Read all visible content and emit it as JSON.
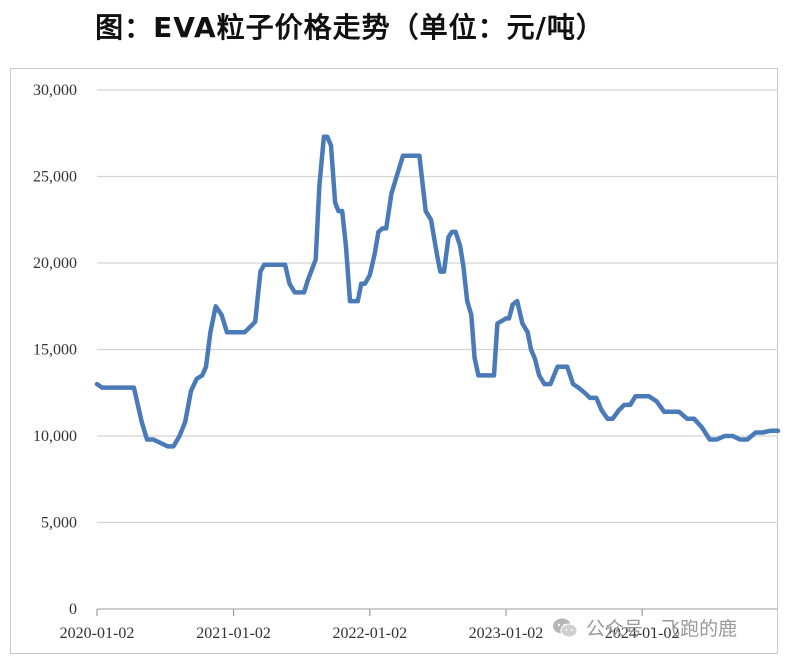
{
  "title": "图：EVA粒子价格走势（单位：元/吨）",
  "watermark": {
    "text": "公众号 · 飞跑的鹿",
    "icon": "wechat-icon"
  },
  "chart_data": {
    "type": "line",
    "title": "",
    "xlabel": "",
    "ylabel": "",
    "x_range": [
      "2020-01-02",
      "2024-12-31"
    ],
    "ylim": [
      0,
      30000
    ],
    "y_ticks": [
      0,
      5000,
      10000,
      15000,
      20000,
      25000,
      30000
    ],
    "y_tick_labels": [
      "0",
      "5,000",
      "10,000",
      "15,000",
      "20,000",
      "25,000",
      "30,000"
    ],
    "x_ticks": [
      "2020-01-02",
      "2021-01-02",
      "2022-01-02",
      "2023-01-02",
      "2024-01-02"
    ],
    "grid": "horizontal",
    "legend": "none",
    "color": "#4a7ab8",
    "series": [
      {
        "x": [
          "2020-01-02",
          "2020-01-15",
          "2020-03-01",
          "2020-04-10",
          "2020-05-01",
          "2020-05-15",
          "2020-06-01",
          "2020-06-20",
          "2020-07-10",
          "2020-07-25",
          "2020-08-10",
          "2020-08-25",
          "2020-09-10",
          "2020-09-25",
          "2020-10-10",
          "2020-10-20",
          "2020-11-01",
          "2020-11-15",
          "2020-12-01",
          "2020-12-15",
          "2021-01-01",
          "2021-02-01",
          "2021-03-01",
          "2021-03-15",
          "2021-03-25",
          "2021-04-05",
          "2021-04-20",
          "2021-05-01",
          "2021-05-20",
          "2021-06-01",
          "2021-06-15",
          "2021-07-01",
          "2021-07-10",
          "2021-07-20",
          "2021-08-10",
          "2021-08-20",
          "2021-09-01",
          "2021-09-10",
          "2021-09-20",
          "2021-10-01",
          "2021-10-10",
          "2021-10-20",
          "2021-10-30",
          "2021-11-10",
          "2021-11-20",
          "2021-12-01",
          "2021-12-10",
          "2021-12-20",
          "2022-01-02",
          "2022-01-15",
          "2022-01-25",
          "2022-02-05",
          "2022-02-15",
          "2022-03-01",
          "2022-03-15",
          "2022-04-01",
          "2022-04-15",
          "2022-04-25",
          "2022-05-05",
          "2022-05-15",
          "2022-06-01",
          "2022-06-15",
          "2022-07-01",
          "2022-07-10",
          "2022-07-20",
          "2022-08-01",
          "2022-08-10",
          "2022-08-20",
          "2022-09-01",
          "2022-09-10",
          "2022-09-20",
          "2022-10-01",
          "2022-10-10",
          "2022-10-20",
          "2022-11-01",
          "2022-11-10",
          "2022-11-20",
          "2022-12-01",
          "2022-12-10",
          "2023-01-02",
          "2023-01-10",
          "2023-01-20",
          "2023-02-01",
          "2023-02-15",
          "2023-03-01",
          "2023-03-10",
          "2023-03-20",
          "2023-04-01",
          "2023-04-15",
          "2023-05-01",
          "2023-05-20",
          "2023-06-01",
          "2023-06-15",
          "2023-07-01",
          "2023-07-15",
          "2023-08-01",
          "2023-08-15",
          "2023-09-01",
          "2023-09-15",
          "2023-10-01",
          "2023-10-15",
          "2023-11-01",
          "2023-11-15",
          "2023-12-01",
          "2023-12-15",
          "2024-01-02",
          "2024-01-20",
          "2024-02-10",
          "2024-03-01",
          "2024-03-20",
          "2024-04-10",
          "2024-05-01",
          "2024-05-20",
          "2024-06-10",
          "2024-07-01",
          "2024-07-20",
          "2024-08-10",
          "2024-09-01",
          "2024-09-20",
          "2024-10-10",
          "2024-11-01",
          "2024-11-20",
          "2024-12-10",
          "2024-12-31"
        ],
        "y": [
          13000,
          12800,
          12800,
          12800,
          10800,
          9800,
          9800,
          9600,
          9400,
          9400,
          10000,
          10800,
          12600,
          13300,
          13500,
          14000,
          16000,
          17500,
          17000,
          16000,
          16000,
          16000,
          16600,
          19500,
          19900,
          19900,
          19900,
          19900,
          19900,
          18800,
          18300,
          18300,
          18300,
          19000,
          20200,
          24500,
          27300,
          27300,
          26800,
          23500,
          23000,
          23000,
          21000,
          17800,
          17800,
          17800,
          18800,
          18800,
          19300,
          20500,
          21800,
          22000,
          22000,
          24000,
          25000,
          26200,
          26200,
          26200,
          26200,
          26200,
          23000,
          22500,
          20500,
          19500,
          19500,
          21500,
          21800,
          21800,
          21000,
          19800,
          17800,
          17000,
          14500,
          13500,
          13500,
          13500,
          13500,
          13500,
          16500,
          16800,
          16800,
          17600,
          17800,
          16500,
          16000,
          15000,
          14500,
          13500,
          13000,
          13000,
          14000,
          14000,
          14000,
          13000,
          12800,
          12500,
          12200,
          12200,
          11500,
          11000,
          11000,
          11500,
          11800,
          11800,
          12300,
          12300,
          12300,
          12000,
          11400,
          11400,
          11400,
          11000,
          11000,
          10500,
          9800,
          9800,
          10000,
          10000,
          9800,
          9800,
          10200,
          10200,
          10300,
          10300
        ]
      }
    ]
  }
}
